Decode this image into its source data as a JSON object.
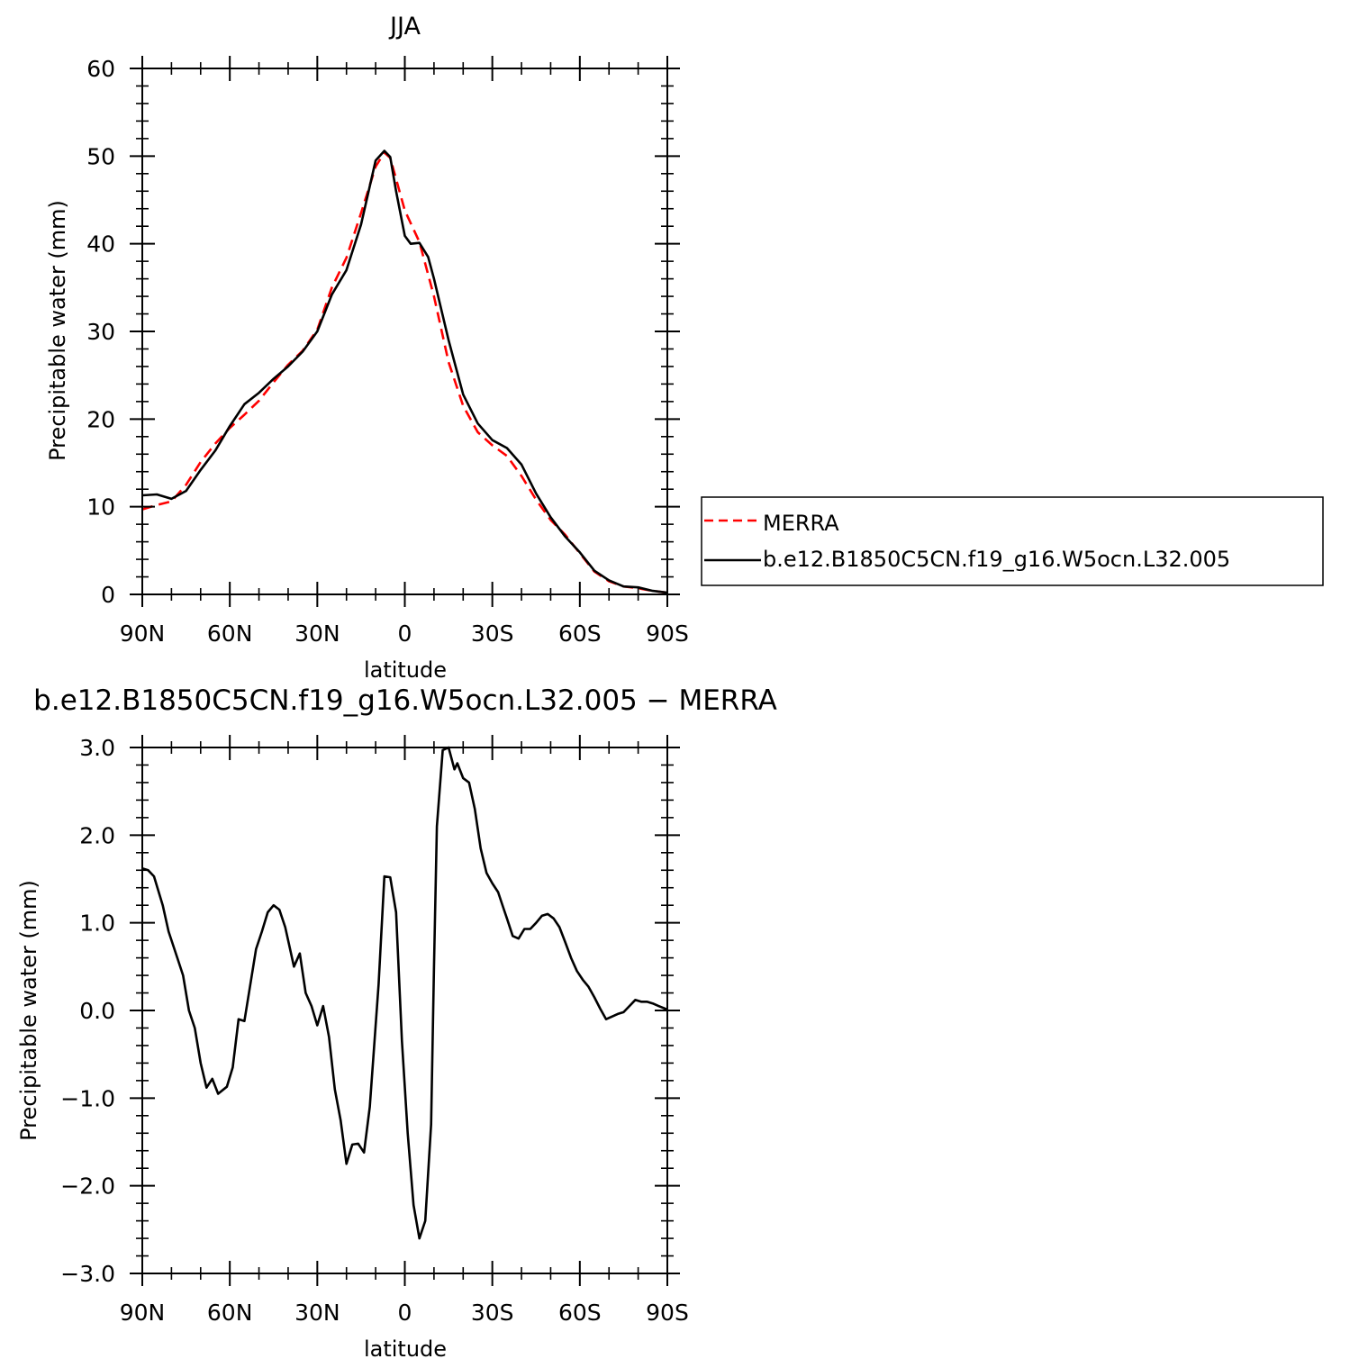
{
  "chart_data": [
    {
      "type": "line",
      "title": "JJA",
      "xlabel": "latitude",
      "ylabel": "Precipitable water (mm)",
      "xlim": [
        90,
        -90
      ],
      "ylim": [
        0,
        60
      ],
      "x_tick_values": [
        90,
        60,
        30,
        0,
        -30,
        -60,
        -90
      ],
      "x_tick_labels": [
        "90N",
        "60N",
        "30N",
        "0",
        "30S",
        "60S",
        "90S"
      ],
      "y_tick_values": [
        0,
        10,
        20,
        30,
        40,
        50,
        60
      ],
      "y_tick_labels": [
        "0",
        "10",
        "20",
        "30",
        "40",
        "50",
        "60"
      ],
      "legend_position": "right",
      "series": [
        {
          "name": "MERRA",
          "color": "#ff0000",
          "dash": "dashed",
          "x": [
            90,
            85,
            80,
            75,
            70,
            65,
            60,
            55,
            50,
            45,
            40,
            35,
            30,
            25,
            20,
            15,
            10,
            7,
            5,
            0,
            -5,
            -10,
            -15,
            -20,
            -25,
            -30,
            -35,
            -40,
            -45,
            -50,
            -55,
            -60,
            -65,
            -70,
            -75,
            -80,
            -85,
            -90
          ],
          "values": [
            9.7,
            10.2,
            10.6,
            12.5,
            15.1,
            17.2,
            19.0,
            20.5,
            22.1,
            24.2,
            26.2,
            27.8,
            30.2,
            35.0,
            38.4,
            43.5,
            48.8,
            50.4,
            49.8,
            43.8,
            40.2,
            34.0,
            26.5,
            21.5,
            18.5,
            17.0,
            15.8,
            13.5,
            10.8,
            8.5,
            6.8,
            4.7,
            2.6,
            1.5,
            0.9,
            0.7,
            0.4,
            0.2
          ]
        },
        {
          "name": "b.e12.B1850C5CN.f19_g16.W5ocn.L32.005",
          "color": "#000000",
          "dash": "solid",
          "x": [
            90,
            85,
            80,
            75,
            70,
            65,
            60,
            55,
            50,
            45,
            40,
            35,
            30,
            25,
            20,
            15,
            10,
            7,
            5,
            3,
            0,
            -2,
            -5,
            -8,
            -10,
            -15,
            -20,
            -25,
            -30,
            -35,
            -40,
            -45,
            -50,
            -55,
            -60,
            -65,
            -70,
            -75,
            -80,
            -85,
            -90
          ],
          "values": [
            11.3,
            11.4,
            10.9,
            11.8,
            14.2,
            16.4,
            19.2,
            21.7,
            23.0,
            24.6,
            26.0,
            27.7,
            30.0,
            34.2,
            37.0,
            42.2,
            49.5,
            50.6,
            49.9,
            46.0,
            40.9,
            40.0,
            40.1,
            38.5,
            36.0,
            29.0,
            22.8,
            19.5,
            17.6,
            16.7,
            14.8,
            11.5,
            8.8,
            6.6,
            4.8,
            2.7,
            1.6,
            0.9,
            0.8,
            0.4,
            0.2
          ]
        }
      ]
    },
    {
      "type": "line",
      "title": "b.e12.B1850C5CN.f19_g16.W5ocn.L32.005 − MERRA",
      "xlabel": "latitude",
      "ylabel": "Precipitable water (mm)",
      "xlim": [
        90,
        -90
      ],
      "ylim": [
        -3.0,
        3.0
      ],
      "x_tick_values": [
        90,
        60,
        30,
        0,
        -30,
        -60,
        -90
      ],
      "x_tick_labels": [
        "90N",
        "60N",
        "30N",
        "0",
        "30S",
        "60S",
        "90S"
      ],
      "y_tick_values": [
        -3,
        -2,
        -1,
        0,
        1,
        2,
        3
      ],
      "y_tick_labels": [
        "−3.0",
        "−2.0",
        "−1.0",
        "0.0",
        "1.0",
        "2.0",
        "3.0"
      ],
      "series": [
        {
          "color": "#000000",
          "dash": "solid",
          "x": [
            90,
            88,
            86,
            83,
            81,
            78,
            76,
            74,
            72,
            70,
            68,
            66,
            64,
            61,
            59,
            57,
            55,
            51,
            49,
            47,
            45,
            43,
            41,
            38,
            36,
            34,
            32,
            30,
            28,
            26,
            24,
            22,
            20,
            18,
            16,
            14,
            12,
            9,
            7,
            5,
            3,
            1,
            -1,
            -3,
            -5,
            -7,
            -9,
            -10,
            -11,
            -13,
            -15,
            -17,
            -18,
            -20,
            -22,
            -24,
            -26,
            -28,
            -30,
            -32,
            -34,
            -35,
            -37,
            -39,
            -41,
            -43,
            -45,
            -47,
            -49,
            -51,
            -53,
            -55,
            -57,
            -59,
            -61,
            -63,
            -65,
            -67,
            -69,
            -71,
            -73,
            -75,
            -77,
            -79,
            -81,
            -83,
            -85,
            -87,
            -90
          ],
          "values": [
            1.62,
            1.6,
            1.53,
            1.2,
            0.9,
            0.6,
            0.4,
            0.0,
            -0.2,
            -0.6,
            -0.88,
            -0.78,
            -0.95,
            -0.87,
            -0.65,
            -0.1,
            -0.12,
            0.7,
            0.9,
            1.12,
            1.2,
            1.15,
            0.95,
            0.5,
            0.65,
            0.2,
            0.05,
            -0.17,
            0.05,
            -0.3,
            -0.9,
            -1.25,
            -1.75,
            -1.53,
            -1.52,
            -1.62,
            -1.1,
            0.3,
            1.53,
            1.52,
            1.12,
            -0.35,
            -1.4,
            -2.22,
            -2.6,
            -2.4,
            -1.3,
            0.5,
            2.1,
            2.97,
            3.0,
            2.75,
            2.82,
            2.65,
            2.6,
            2.3,
            1.85,
            1.57,
            1.45,
            1.35,
            1.15,
            1.05,
            0.85,
            0.82,
            0.93,
            0.93,
            1.0,
            1.08,
            1.1,
            1.05,
            0.95,
            0.78,
            0.6,
            0.45,
            0.35,
            0.27,
            0.15,
            0.02,
            -0.1,
            -0.07,
            -0.04,
            -0.02,
            0.05,
            0.12,
            0.1,
            0.1,
            0.08,
            0.05,
            0.01
          ]
        }
      ]
    }
  ],
  "legend": {
    "merra_label": "MERRA",
    "model_label": "b.e12.B1850C5CN.f19_g16.W5ocn.L32.005"
  }
}
